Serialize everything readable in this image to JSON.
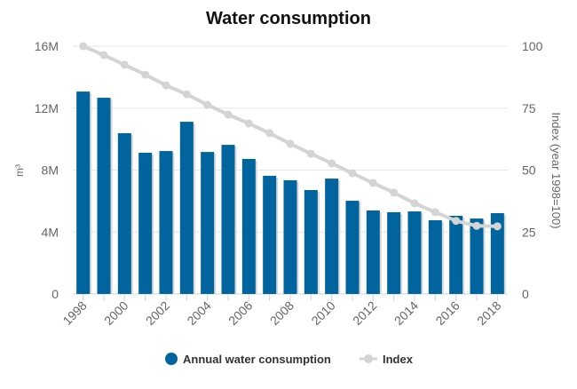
{
  "chart_data": {
    "type": "bar",
    "title": "Water consumption",
    "categories": [
      "1998",
      "1999",
      "2000",
      "2001",
      "2002",
      "2003",
      "2004",
      "2005",
      "2006",
      "2007",
      "2008",
      "2009",
      "2010",
      "2011",
      "2012",
      "2013",
      "2014",
      "2015",
      "2016",
      "2017",
      "2018"
    ],
    "x_tick_labels": [
      "1998",
      "2000",
      "2002",
      "2004",
      "2006",
      "2008",
      "2010",
      "2012",
      "2014",
      "2016",
      "2018"
    ],
    "series": [
      {
        "name": "Annual water consumption",
        "type": "bar",
        "axis": "left",
        "color": "#00659e",
        "values": [
          13070000,
          12670000,
          10380000,
          9120000,
          9230000,
          11120000,
          9170000,
          9630000,
          8720000,
          7630000,
          7340000,
          6710000,
          7450000,
          6020000,
          5390000,
          5280000,
          5330000,
          4760000,
          5050000,
          4870000,
          5220000
        ]
      },
      {
        "name": "Index",
        "type": "line",
        "axis": "right",
        "color": "#d4d4d4",
        "values": [
          100,
          96.4,
          92.5,
          88.5,
          84.2,
          80.6,
          76.3,
          72.4,
          68.8,
          64.9,
          60.6,
          56.6,
          52.7,
          48.7,
          44.8,
          40.9,
          36.6,
          33,
          29.5,
          27.5,
          27.3
        ]
      }
    ],
    "y_left": {
      "label": "m³",
      "ylim": [
        0,
        16000000
      ],
      "ticks": [
        0,
        4000000,
        8000000,
        12000000,
        16000000
      ],
      "tick_labels": [
        "0",
        "4M",
        "8M",
        "12M",
        "16M"
      ]
    },
    "y_right": {
      "label": "Index (year 1998=100)",
      "ylim": [
        0,
        100
      ],
      "ticks": [
        0,
        25,
        50,
        75,
        100
      ],
      "tick_labels": [
        "0",
        "25",
        "50",
        "75",
        "100"
      ]
    },
    "grid": true,
    "legend_position": "bottom"
  }
}
